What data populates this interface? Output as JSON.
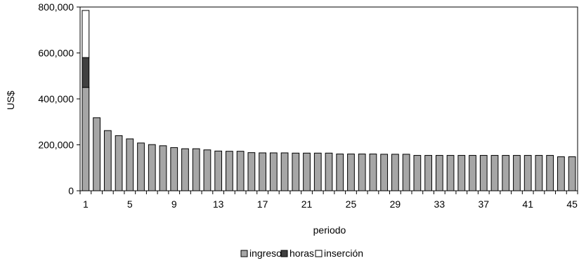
{
  "chart_data": {
    "type": "bar",
    "stacked": true,
    "title": "",
    "xlabel": "periodo",
    "ylabel": "US$",
    "ylim": [
      0,
      800000
    ],
    "yticks": [
      0,
      200000,
      400000,
      600000,
      800000
    ],
    "ytick_labels": [
      "0",
      "200,000",
      "400,000",
      "600,000",
      "800,000"
    ],
    "x": [
      1,
      2,
      3,
      4,
      5,
      6,
      7,
      8,
      9,
      10,
      11,
      12,
      13,
      14,
      15,
      16,
      17,
      18,
      19,
      20,
      21,
      22,
      23,
      24,
      25,
      26,
      27,
      28,
      29,
      30,
      31,
      32,
      33,
      34,
      35,
      36,
      37,
      38,
      39,
      40,
      41,
      42,
      43,
      44,
      45
    ],
    "xtick_labels": [
      "1",
      "5",
      "9",
      "13",
      "17",
      "21",
      "25",
      "29",
      "33",
      "37",
      "41",
      "45"
    ],
    "grid": false,
    "legend": "bottom",
    "series": [
      {
        "name": "ingreso",
        "color": "#a6a6a6",
        "values": [
          450000,
          318000,
          262000,
          240000,
          226000,
          208000,
          201000,
          196000,
          188000,
          183000,
          183000,
          178000,
          173000,
          172000,
          172000,
          166000,
          165000,
          165000,
          165000,
          164000,
          164000,
          164000,
          164000,
          160000,
          160000,
          160000,
          160000,
          159000,
          159000,
          159000,
          154000,
          154000,
          154000,
          154000,
          154000,
          154000,
          154000,
          154000,
          154000,
          154000,
          154000,
          154000,
          154000,
          148000,
          148000
        ]
      },
      {
        "name": "horas",
        "color": "#404040",
        "values": [
          130000,
          0,
          0,
          0,
          0,
          0,
          0,
          0,
          0,
          0,
          0,
          0,
          0,
          0,
          0,
          0,
          0,
          0,
          0,
          0,
          0,
          0,
          0,
          0,
          0,
          0,
          0,
          0,
          0,
          0,
          0,
          0,
          0,
          0,
          0,
          0,
          0,
          0,
          0,
          0,
          0,
          0,
          0,
          0,
          0
        ]
      },
      {
        "name": "inserción",
        "color": "#ffffff",
        "values": [
          205000,
          0,
          0,
          0,
          0,
          0,
          0,
          0,
          0,
          0,
          0,
          0,
          0,
          0,
          0,
          0,
          0,
          0,
          0,
          0,
          0,
          0,
          0,
          0,
          0,
          0,
          0,
          0,
          0,
          0,
          0,
          0,
          0,
          0,
          0,
          0,
          0,
          0,
          0,
          0,
          0,
          0,
          0,
          0,
          0
        ]
      }
    ]
  }
}
